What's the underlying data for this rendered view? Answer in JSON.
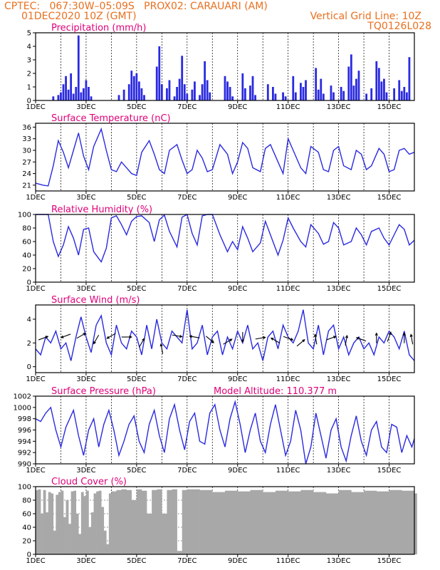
{
  "header": {
    "line1_left": "CPTEC:   067:30W–05:09S   PROX02: CARAUARI (AM)",
    "line2_left": "01DEC2020 10Z (GMT)",
    "line2_right": "Vertical Grid Line: 10Z",
    "line3_right": "TQ0126L028"
  },
  "colors": {
    "series": "#2a2ae0",
    "header": "#e87020",
    "title": "#e0007a",
    "cloud": "#a8a8a8",
    "arrow": "#000000"
  },
  "chart_data": [
    {
      "type": "bar",
      "title": "Precipitation (mm/h)",
      "ylim": [
        0,
        5
      ],
      "yticks": [
        0,
        1,
        2,
        3,
        4,
        5
      ],
      "x_tick_labels": [
        "1DEC",
        "3DEC",
        "5DEC",
        "7DEC",
        "9DEC",
        "11DEC",
        "13DEC",
        "15DEC"
      ],
      "x_tick_days": [
        1,
        3,
        5,
        7,
        9,
        11,
        13,
        15
      ],
      "xlim_days": [
        1,
        16
      ],
      "x_days": [
        1.7,
        1.9,
        2.0,
        2.1,
        2.2,
        2.3,
        2.4,
        2.5,
        2.6,
        2.7,
        2.8,
        2.9,
        3.0,
        3.1,
        3.2,
        4.3,
        4.5,
        4.7,
        4.8,
        4.9,
        5.0,
        5.1,
        5.2,
        5.3,
        5.8,
        5.9,
        6.0,
        6.2,
        6.3,
        6.5,
        6.6,
        6.7,
        6.8,
        6.9,
        7.0,
        7.2,
        7.3,
        7.5,
        7.6,
        7.7,
        7.8,
        7.9,
        8.5,
        8.6,
        8.7,
        8.8,
        9.2,
        9.3,
        9.5,
        9.6,
        9.7,
        10.2,
        10.4,
        10.5,
        10.8,
        10.9,
        11.2,
        11.3,
        11.5,
        11.6,
        11.7,
        12.1,
        12.2,
        12.3,
        12.4,
        12.7,
        12.8,
        13.1,
        13.2,
        13.4,
        13.5,
        13.6,
        13.7,
        13.8,
        14.1,
        14.3,
        14.5,
        14.6,
        14.7,
        14.8,
        14.9,
        15.2,
        15.4,
        15.5,
        15.6,
        15.7,
        15.8
      ],
      "values": [
        0.3,
        0.4,
        0.6,
        1.2,
        1.8,
        0.8,
        2.0,
        0.5,
        1.0,
        4.8,
        0.6,
        0.9,
        1.5,
        1.0,
        0.3,
        0.4,
        0.8,
        1.2,
        2.2,
        1.8,
        2.0,
        1.4,
        0.9,
        0.4,
        2.5,
        4.0,
        1.2,
        0.9,
        1.5,
        0.3,
        1.0,
        1.6,
        3.3,
        1.2,
        0.5,
        0.8,
        1.4,
        0.4,
        1.2,
        2.9,
        1.5,
        0.6,
        1.8,
        1.4,
        1.0,
        0.3,
        2.0,
        0.9,
        1.1,
        1.8,
        0.4,
        1.2,
        1.0,
        0.5,
        0.6,
        0.3,
        1.8,
        0.6,
        1.3,
        1.0,
        1.5,
        2.4,
        0.8,
        1.6,
        0.5,
        1.1,
        0.6,
        1.0,
        0.7,
        2.5,
        3.4,
        1.1,
        1.6,
        2.2,
        0.5,
        0.9,
        2.9,
        2.4,
        1.4,
        1.6,
        0.6,
        0.9,
        1.5,
        0.7,
        1.0,
        0.6,
        3.2
      ]
    },
    {
      "type": "line",
      "title": "Surface Temperature (nC)",
      "ylim": [
        19.5,
        37
      ],
      "yticks": [
        21,
        24,
        27,
        30,
        33,
        36
      ],
      "x_tick_labels": [
        "1DEC",
        "3DEC",
        "5DEC",
        "7DEC",
        "9DEC",
        "11DEC",
        "13DEC",
        "15DEC"
      ],
      "x_tick_days": [
        1,
        3,
        5,
        7,
        9,
        11,
        13,
        15
      ],
      "xlim_days": [
        1,
        16
      ],
      "x_days": [
        1.0,
        1.3,
        1.5,
        1.7,
        1.9,
        2.1,
        2.3,
        2.5,
        2.7,
        2.9,
        3.1,
        3.3,
        3.6,
        3.8,
        4.0,
        4.2,
        4.4,
        4.6,
        4.8,
        5.0,
        5.2,
        5.5,
        5.7,
        5.9,
        6.1,
        6.3,
        6.6,
        6.8,
        7.0,
        7.2,
        7.4,
        7.6,
        7.8,
        8.0,
        8.3,
        8.6,
        8.8,
        9.0,
        9.2,
        9.4,
        9.6,
        9.9,
        10.1,
        10.3,
        10.6,
        10.8,
        11.0,
        11.2,
        11.5,
        11.7,
        11.9,
        12.2,
        12.4,
        12.6,
        12.8,
        13.0,
        13.2,
        13.5,
        13.7,
        13.9,
        14.1,
        14.3,
        14.6,
        14.8,
        15.0,
        15.2,
        15.4,
        15.6,
        15.8,
        16.0
      ],
      "values": [
        21.5,
        21.0,
        20.8,
        26.0,
        32.5,
        29.5,
        25.5,
        30.0,
        34.5,
        28.5,
        25.0,
        31.0,
        35.5,
        30.0,
        25.0,
        24.5,
        27.0,
        25.5,
        24.0,
        23.5,
        29.5,
        32.5,
        29.0,
        25.0,
        24.0,
        30.0,
        31.5,
        27.5,
        24.0,
        25.0,
        30.0,
        28.0,
        24.5,
        25.0,
        31.5,
        29.0,
        24.0,
        27.0,
        32.0,
        30.5,
        25.5,
        24.5,
        30.5,
        31.5,
        27.0,
        24.0,
        33.0,
        30.0,
        25.5,
        24.0,
        31.0,
        29.5,
        25.0,
        24.5,
        30.0,
        31.0,
        26.0,
        25.0,
        30.0,
        29.0,
        25.0,
        26.0,
        30.5,
        29.0,
        24.5,
        25.0,
        30.0,
        30.5,
        29.0,
        29.5
      ]
    },
    {
      "type": "line",
      "title": "Relative Humidity (%)",
      "ylim": [
        0,
        100
      ],
      "yticks": [
        0,
        20,
        40,
        60,
        80,
        100
      ],
      "x_tick_labels": [
        "1DEC",
        "3DEC",
        "5DEC",
        "7DEC",
        "9DEC",
        "11DEC",
        "13DEC",
        "15DEC"
      ],
      "x_tick_days": [
        1,
        3,
        5,
        7,
        9,
        11,
        13,
        15
      ],
      "xlim_days": [
        1,
        16
      ],
      "x_days": [
        1.0,
        1.3,
        1.5,
        1.7,
        1.9,
        2.1,
        2.3,
        2.5,
        2.7,
        2.9,
        3.1,
        3.3,
        3.6,
        3.8,
        4.0,
        4.2,
        4.4,
        4.6,
        4.8,
        5.0,
        5.2,
        5.5,
        5.7,
        5.9,
        6.1,
        6.3,
        6.6,
        6.8,
        7.0,
        7.2,
        7.4,
        7.6,
        7.8,
        8.0,
        8.3,
        8.6,
        8.8,
        9.0,
        9.2,
        9.4,
        9.6,
        9.9,
        10.1,
        10.3,
        10.6,
        10.8,
        11.0,
        11.2,
        11.5,
        11.7,
        11.9,
        12.2,
        12.4,
        12.6,
        12.8,
        13.0,
        13.2,
        13.5,
        13.7,
        13.9,
        14.1,
        14.3,
        14.6,
        14.8,
        15.0,
        15.2,
        15.4,
        15.6,
        15.8,
        16.0
      ],
      "values": [
        100,
        100,
        100,
        60,
        38,
        55,
        82,
        65,
        40,
        78,
        80,
        45,
        30,
        50,
        95,
        98,
        85,
        70,
        90,
        97,
        98,
        88,
        60,
        92,
        99,
        75,
        52,
        96,
        100,
        72,
        55,
        98,
        100,
        100,
        70,
        45,
        60,
        48,
        82,
        65,
        45,
        58,
        90,
        70,
        40,
        62,
        95,
        80,
        60,
        52,
        85,
        72,
        56,
        60,
        88,
        80,
        55,
        60,
        80,
        70,
        55,
        75,
        80,
        65,
        55,
        70,
        85,
        78,
        55,
        62
      ]
    },
    {
      "type": "line",
      "title": "Surface Wind (m/s)",
      "ylim": [
        -0.5,
        5.2
      ],
      "yticks": [
        0,
        2,
        4
      ],
      "x_tick_labels": [
        "1DEC",
        "3DEC",
        "5DEC",
        "7DEC",
        "9DEC",
        "11DEC",
        "13DEC",
        "15DEC"
      ],
      "x_tick_days": [
        1,
        3,
        5,
        7,
        9,
        11,
        13,
        15
      ],
      "xlim_days": [
        1,
        16
      ],
      "x_days": [
        1.0,
        1.2,
        1.4,
        1.6,
        1.8,
        2.0,
        2.2,
        2.4,
        2.6,
        2.8,
        3.0,
        3.2,
        3.4,
        3.6,
        3.8,
        4.0,
        4.2,
        4.4,
        4.6,
        4.8,
        5.0,
        5.2,
        5.4,
        5.6,
        5.8,
        6.0,
        6.2,
        6.4,
        6.6,
        6.8,
        7.0,
        7.2,
        7.4,
        7.6,
        7.8,
        8.0,
        8.2,
        8.4,
        8.6,
        8.8,
        9.0,
        9.2,
        9.4,
        9.6,
        9.8,
        10.0,
        10.2,
        10.4,
        10.6,
        10.8,
        11.0,
        11.2,
        11.4,
        11.6,
        11.8,
        12.0,
        12.2,
        12.4,
        12.6,
        12.8,
        13.0,
        13.2,
        13.4,
        13.6,
        13.8,
        14.0,
        14.2,
        14.4,
        14.6,
        14.8,
        15.0,
        15.2,
        15.4,
        15.6,
        15.8,
        16.0
      ],
      "values": [
        1.5,
        1.0,
        2.5,
        2.0,
        3.0,
        1.5,
        2.0,
        0.5,
        2.5,
        4.2,
        2.5,
        1.2,
        3.5,
        4.3,
        2.0,
        1.0,
        3.5,
        2.0,
        1.5,
        3.0,
        2.5,
        1.0,
        3.5,
        1.5,
        4.0,
        2.0,
        1.5,
        3.0,
        2.5,
        2.0,
        4.8,
        1.5,
        2.0,
        3.5,
        1.0,
        2.5,
        3.0,
        1.0,
        2.5,
        1.5,
        3.0,
        2.0,
        3.5,
        1.5,
        2.0,
        0.5,
        2.5,
        3.0,
        1.5,
        3.5,
        2.5,
        2.0,
        3.0,
        4.8,
        2.0,
        1.5,
        3.5,
        1.0,
        3.0,
        3.5,
        1.5,
        2.5,
        1.0,
        2.0,
        2.5,
        1.5,
        2.0,
        1.0,
        2.5,
        2.0,
        3.0,
        2.5,
        1.5,
        3.0,
        1.0,
        0.5
      ],
      "arrows": [
        {
          "x": 1.3,
          "y": 2.4,
          "angle_deg": 20
        },
        {
          "x": 2.2,
          "y": 2.6,
          "angle_deg": -160
        },
        {
          "x": 2.8,
          "y": 2.6,
          "angle_deg": 30
        },
        {
          "x": 3.4,
          "y": 2.3,
          "angle_deg": -120
        },
        {
          "x": 4.0,
          "y": 2.6,
          "angle_deg": -150
        },
        {
          "x": 4.6,
          "y": 2.5,
          "angle_deg": 0
        },
        {
          "x": 5.2,
          "y": 2.0,
          "angle_deg": 60
        },
        {
          "x": 6.0,
          "y": 1.5,
          "angle_deg": 100
        },
        {
          "x": 6.6,
          "y": 2.6,
          "angle_deg": -10
        },
        {
          "x": 7.3,
          "y": 2.5,
          "angle_deg": 170
        },
        {
          "x": 7.9,
          "y": 2.3,
          "angle_deg": -40
        },
        {
          "x": 8.6,
          "y": 2.1,
          "angle_deg": 30
        },
        {
          "x": 9.2,
          "y": 2.5,
          "angle_deg": -90
        },
        {
          "x": 9.9,
          "y": 2.4,
          "angle_deg": 10
        },
        {
          "x": 10.5,
          "y": 2.2,
          "angle_deg": 150
        },
        {
          "x": 11.0,
          "y": 2.4,
          "angle_deg": -20
        },
        {
          "x": 11.5,
          "y": 2.0,
          "angle_deg": 40
        },
        {
          "x": 12.1,
          "y": 2.3,
          "angle_deg": 100
        },
        {
          "x": 12.7,
          "y": 2.4,
          "angle_deg": 20
        },
        {
          "x": 13.3,
          "y": 2.2,
          "angle_deg": 80
        },
        {
          "x": 13.9,
          "y": 2.3,
          "angle_deg": 160
        },
        {
          "x": 14.5,
          "y": 2.4,
          "angle_deg": 90
        },
        {
          "x": 15.0,
          "y": 2.5,
          "angle_deg": 70
        },
        {
          "x": 15.6,
          "y": 2.4,
          "angle_deg": 90
        },
        {
          "x": 15.9,
          "y": 2.3,
          "angle_deg": 100
        }
      ]
    },
    {
      "type": "line",
      "title": "Surface Pressure (hPa)",
      "subtitle": "Model Altitude: 110.377  m",
      "ylim": [
        990,
        1002
      ],
      "yticks": [
        990,
        992,
        994,
        996,
        998,
        1000,
        1002
      ],
      "x_tick_labels": [
        "1DEC",
        "3DEC",
        "5DEC",
        "7DEC",
        "9DEC",
        "11DEC",
        "13DEC",
        "15DEC"
      ],
      "x_tick_days": [
        1,
        3,
        5,
        7,
        9,
        11,
        13,
        15
      ],
      "xlim_days": [
        1,
        16
      ],
      "x_days": [
        1.0,
        1.2,
        1.4,
        1.6,
        1.8,
        2.0,
        2.2,
        2.5,
        2.7,
        2.9,
        3.1,
        3.3,
        3.5,
        3.7,
        3.9,
        4.1,
        4.3,
        4.5,
        4.7,
        4.9,
        5.1,
        5.3,
        5.5,
        5.7,
        5.9,
        6.1,
        6.3,
        6.5,
        6.7,
        6.9,
        7.1,
        7.3,
        7.5,
        7.7,
        7.9,
        8.1,
        8.3,
        8.5,
        8.7,
        8.9,
        9.1,
        9.3,
        9.5,
        9.7,
        9.9,
        10.1,
        10.3,
        10.5,
        10.7,
        10.9,
        11.1,
        11.3,
        11.5,
        11.7,
        11.9,
        12.1,
        12.3,
        12.5,
        12.7,
        12.9,
        13.1,
        13.3,
        13.5,
        13.7,
        13.9,
        14.1,
        14.3,
        14.5,
        14.7,
        14.9,
        15.1,
        15.3,
        15.5,
        15.7,
        15.9,
        16.0
      ],
      "values": [
        998,
        997.5,
        999,
        1000,
        996,
        993,
        996.5,
        999.5,
        995,
        991.5,
        996,
        998,
        993,
        997,
        999.5,
        996,
        991.5,
        994,
        997,
        998.5,
        994,
        992,
        997,
        999.5,
        995,
        992,
        998,
        1000.5,
        996,
        992.5,
        997.5,
        999,
        994,
        993.5,
        999,
        1000.5,
        996,
        993,
        998,
        1001,
        997,
        992,
        996,
        999,
        994,
        992,
        997,
        1000.5,
        996,
        991.5,
        994,
        999.5,
        996,
        990,
        993,
        999,
        995,
        991,
        996,
        998,
        993,
        990.5,
        995,
        998.5,
        994,
        991.5,
        996,
        997.5,
        993,
        992,
        997,
        996.5,
        992,
        995,
        993,
        994.5
      ]
    },
    {
      "type": "bar",
      "title": "Cloud Cover (%)",
      "ylim": [
        0,
        100
      ],
      "yticks": [
        0,
        20,
        40,
        60,
        80,
        100
      ],
      "x_tick_labels": [
        "1DEC",
        "3DEC",
        "5DEC",
        "7DEC",
        "9DEC",
        "11DEC",
        "13DEC",
        "15DEC"
      ],
      "x_tick_days": [
        1,
        3,
        5,
        7,
        9,
        11,
        13,
        15
      ],
      "xlim_days": [
        1,
        16
      ],
      "x_days": [
        1.0,
        1.1,
        1.2,
        1.3,
        1.4,
        1.5,
        1.6,
        1.7,
        1.8,
        1.9,
        2.0,
        2.1,
        2.2,
        2.3,
        2.4,
        2.5,
        2.6,
        2.7,
        2.8,
        2.9,
        3.0,
        3.1,
        3.2,
        3.3,
        3.4,
        3.5,
        3.6,
        3.7,
        3.8,
        3.9,
        4.0,
        4.2,
        4.4,
        4.6,
        4.8,
        5.0,
        5.2,
        5.4,
        5.6,
        5.8,
        6.0,
        6.2,
        6.4,
        6.6,
        6.8,
        7.0,
        7.5,
        8.0,
        8.5,
        9.0,
        9.5,
        10.0,
        10.5,
        11.0,
        11.5,
        12.0,
        12.5,
        13.0,
        13.5,
        14.0,
        14.5,
        15.0,
        15.5,
        16.0
      ],
      "values": [
        95,
        96,
        60,
        95,
        62,
        92,
        90,
        35,
        88,
        92,
        94,
        55,
        80,
        45,
        93,
        94,
        60,
        30,
        92,
        86,
        94,
        40,
        62,
        90,
        93,
        94,
        70,
        35,
        15,
        90,
        93,
        95,
        96,
        95,
        80,
        96,
        94,
        60,
        95,
        96,
        60,
        95,
        96,
        5,
        95,
        96,
        95,
        92,
        94,
        93,
        95,
        92,
        94,
        93,
        95,
        92,
        90,
        95,
        92,
        94,
        93,
        95,
        94,
        90
      ]
    }
  ]
}
